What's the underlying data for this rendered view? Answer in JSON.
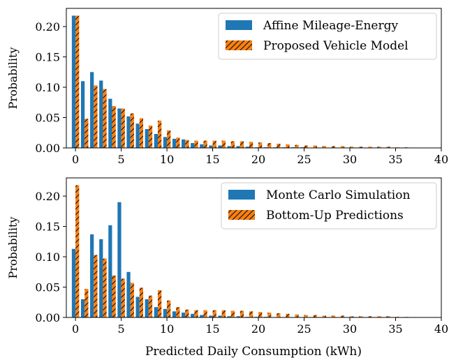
{
  "colors": {
    "blue": "#1f77b4",
    "orange": "#ff7f0e",
    "hatch": "#1a1a1a"
  },
  "chart_data": [
    {
      "type": "bar",
      "title": "",
      "xlabel": "",
      "ylabel": "Probability",
      "xlim": [
        -1,
        40
      ],
      "ylim": [
        0,
        0.23
      ],
      "xticks": [
        "0",
        "5",
        "10",
        "15",
        "20",
        "25",
        "30",
        "35",
        "40"
      ],
      "yticks": [
        "0.00",
        "0.05",
        "0.10",
        "0.15",
        "0.20"
      ],
      "grid": false,
      "legend_position": "top-right",
      "x": [
        0,
        1,
        2,
        3,
        4,
        5,
        6,
        7,
        8,
        9,
        10,
        11,
        12,
        13,
        14,
        15,
        16,
        17,
        18,
        19,
        20,
        21,
        22,
        23,
        24,
        25,
        26,
        27,
        28,
        29,
        30,
        31,
        32,
        33,
        34,
        35,
        36
      ],
      "series": [
        {
          "name": "Affine Mileage-Energy",
          "color": "blue",
          "hatch": false,
          "values": [
            0.218,
            0.11,
            0.125,
            0.111,
            0.081,
            0.065,
            0.052,
            0.04,
            0.031,
            0.023,
            0.018,
            0.015,
            0.014,
            0.008,
            0.006,
            0.004,
            0.004,
            0.003,
            0.003,
            0.002,
            0.001,
            0.001,
            0.001,
            0.001,
            0.001,
            0.001,
            0.0,
            0.0,
            0.0,
            0.0,
            0.0,
            0.0,
            0.0,
            0.0,
            0.0,
            0.0,
            0.0
          ]
        },
        {
          "name": "Proposed Vehicle Model",
          "color": "orange",
          "hatch": true,
          "values": [
            0.218,
            0.048,
            0.103,
            0.097,
            0.069,
            0.065,
            0.057,
            0.049,
            0.037,
            0.045,
            0.029,
            0.017,
            0.013,
            0.012,
            0.012,
            0.012,
            0.012,
            0.011,
            0.011,
            0.01,
            0.009,
            0.008,
            0.007,
            0.006,
            0.005,
            0.004,
            0.004,
            0.003,
            0.003,
            0.003,
            0.002,
            0.002,
            0.002,
            0.002,
            0.002,
            0.001,
            0.001
          ]
        }
      ]
    },
    {
      "type": "bar",
      "title": "",
      "xlabel": "Predicted Daily Consumption (kWh)",
      "ylabel": "Probability",
      "xlim": [
        -1,
        40
      ],
      "ylim": [
        0,
        0.23
      ],
      "xticks": [
        "0",
        "5",
        "10",
        "15",
        "20",
        "25",
        "30",
        "35",
        "40"
      ],
      "yticks": [
        "0.00",
        "0.05",
        "0.10",
        "0.15",
        "0.20"
      ],
      "grid": false,
      "legend_position": "top-right",
      "x": [
        0,
        1,
        2,
        3,
        4,
        5,
        6,
        7,
        8,
        9,
        10,
        11,
        12,
        13,
        14,
        15,
        16,
        17,
        18,
        19,
        20,
        21,
        22,
        23,
        24,
        25,
        26,
        27,
        28,
        29,
        30,
        31,
        32,
        33,
        34,
        35,
        36
      ],
      "series": [
        {
          "name": "Monte Carlo Simulation",
          "color": "blue",
          "hatch": false,
          "values": [
            0.113,
            0.03,
            0.137,
            0.129,
            0.152,
            0.19,
            0.075,
            0.034,
            0.03,
            0.017,
            0.014,
            0.01,
            0.008,
            0.006,
            0.004,
            0.003,
            0.003,
            0.002,
            0.002,
            0.001,
            0.001,
            0.001,
            0.0,
            0.0,
            0.0,
            0.0,
            0.0,
            0.0,
            0.0,
            0.0,
            0.0,
            0.0,
            0.0,
            0.0,
            0.0,
            0.0,
            0.0
          ]
        },
        {
          "name": "Bottom-Up Predictions",
          "color": "orange",
          "hatch": true,
          "values": [
            0.218,
            0.047,
            0.103,
            0.097,
            0.069,
            0.064,
            0.057,
            0.049,
            0.036,
            0.045,
            0.028,
            0.017,
            0.013,
            0.012,
            0.012,
            0.012,
            0.012,
            0.011,
            0.011,
            0.01,
            0.009,
            0.008,
            0.007,
            0.006,
            0.005,
            0.004,
            0.004,
            0.003,
            0.003,
            0.003,
            0.002,
            0.002,
            0.002,
            0.002,
            0.002,
            0.001,
            0.001
          ]
        }
      ]
    }
  ]
}
